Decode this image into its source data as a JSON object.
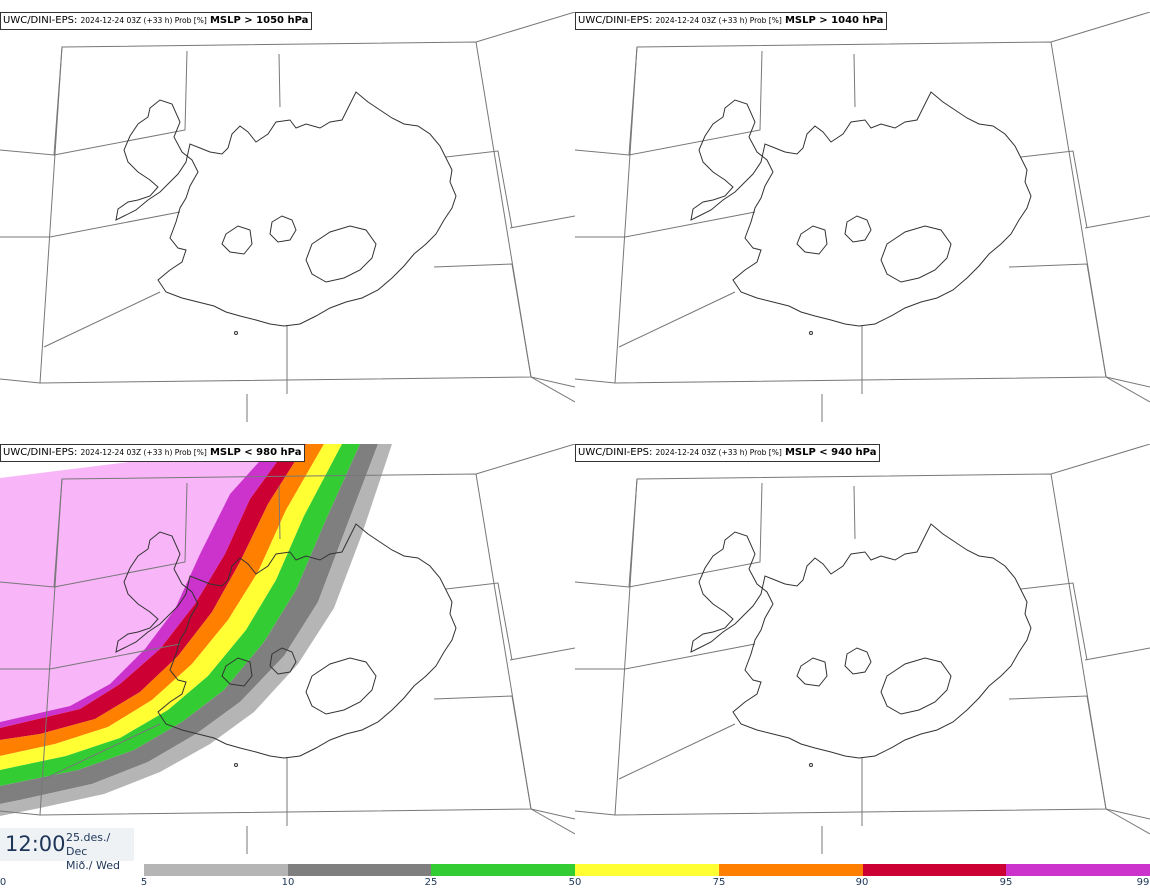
{
  "panels": [
    {
      "model": "UWC/DINI-EPS",
      "meta": "2024-12-24 03Z (+33 h) Prob [%]",
      "param": "MSLP > 1050 hPa"
    },
    {
      "model": "UWC/DINI-EPS",
      "meta": "2024-12-24 03Z (+33 h) Prob [%]",
      "param": "MSLP > 1040 hPa"
    },
    {
      "model": "UWC/DINI-EPS",
      "meta": "2024-12-24 03Z (+33 h) Prob [%]",
      "param": "MSLP < 980 hPa"
    },
    {
      "model": "UWC/DINI-EPS",
      "meta": "2024-12-24 03Z (+33 h) Prob [%]",
      "param": "MSLP < 940 hPa"
    }
  ],
  "valid_time": {
    "time": "12:00",
    "date_line1": "25.des./ Dec",
    "date_line2": "Mið./ Wed"
  },
  "legend": {
    "ticks": [
      "0",
      "5",
      "10",
      "25",
      "50",
      "75",
      "90",
      "95",
      "99"
    ],
    "colors": [
      "#ffffff",
      "#b5b5b5",
      "#7f7f7f",
      "#33cc33",
      "#ffff33",
      "#ff7f00",
      "#cc0033",
      "#cc33cc",
      "#ffb3ff"
    ]
  },
  "probability_shading": {
    "panel_index": 2,
    "bands": [
      {
        "range": "99",
        "color": "#f8b5f8"
      },
      {
        "range": "95-99",
        "color": "#cc33cc"
      },
      {
        "range": "90-95",
        "color": "#cc0033"
      },
      {
        "range": "75-90",
        "color": "#ff7f00"
      },
      {
        "range": "50-75",
        "color": "#ffff33"
      },
      {
        "range": "25-50",
        "color": "#33cc33"
      },
      {
        "range": "10-25",
        "color": "#7f7f7f"
      },
      {
        "range": "5-10",
        "color": "#b5b5b5"
      }
    ]
  }
}
